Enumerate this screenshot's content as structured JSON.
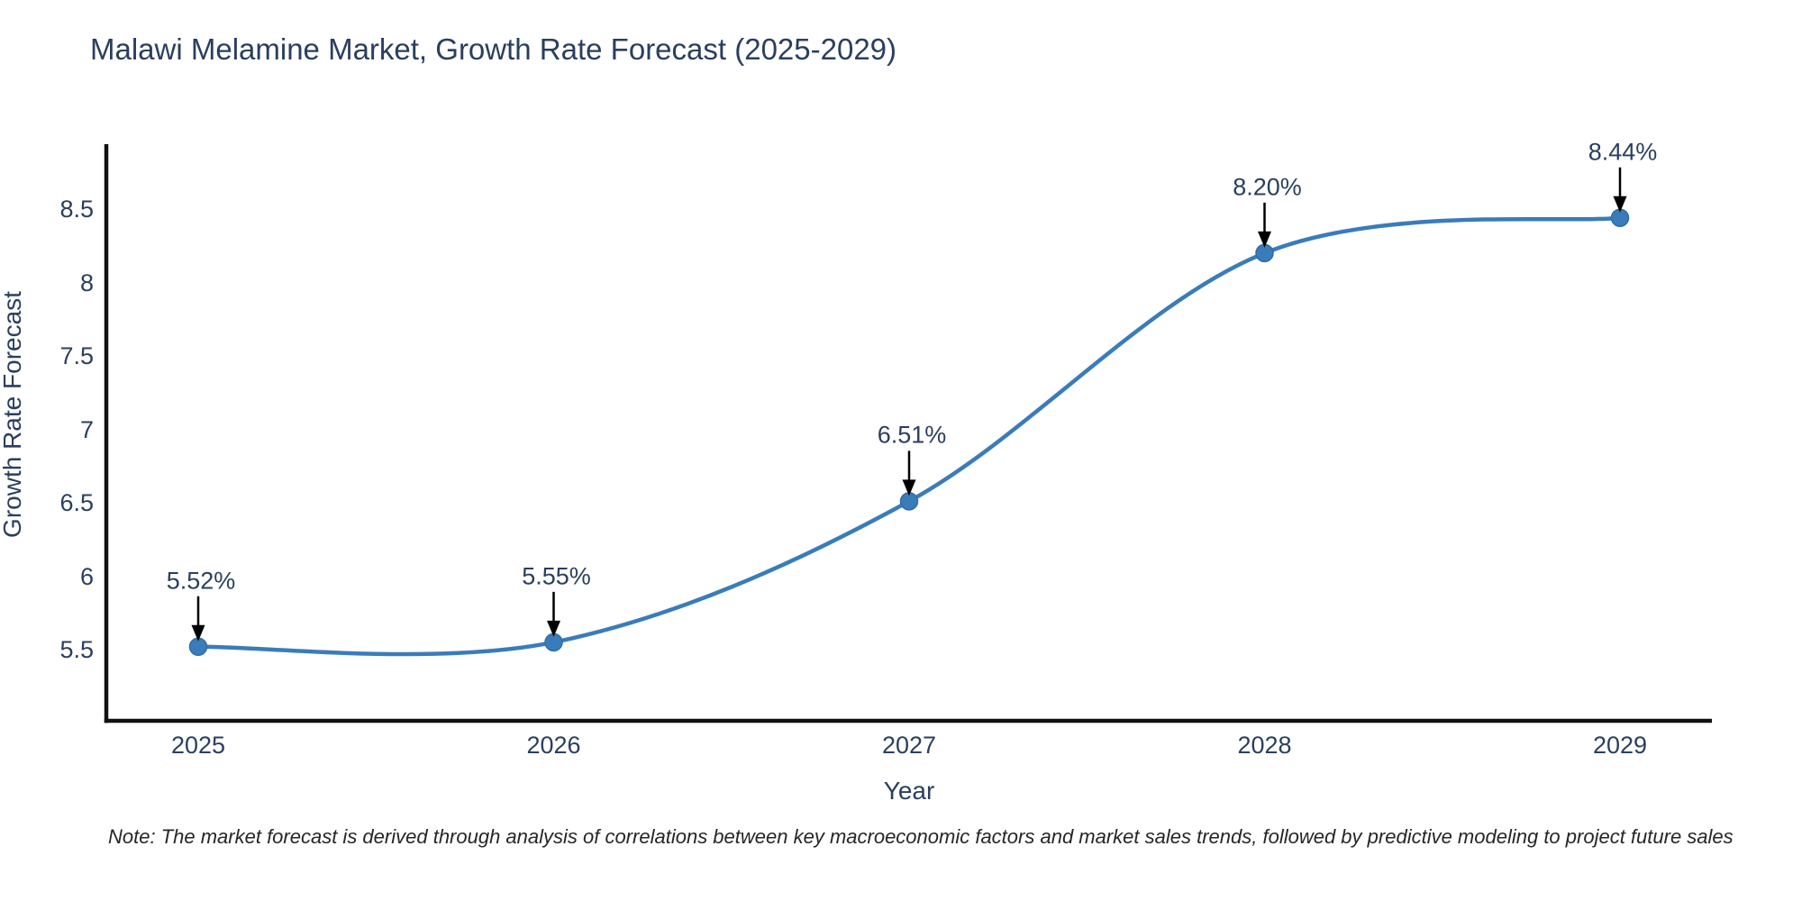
{
  "chart_data": {
    "type": "line",
    "title": "Malawi Melamine Market, Growth Rate Forecast (2025-2029)",
    "xlabel": "Year",
    "ylabel": "Growth Rate Forecast",
    "x": [
      2025,
      2026,
      2027,
      2028,
      2029
    ],
    "series": [
      {
        "name": "Growth Rate Forecast",
        "values": [
          5.52,
          5.55,
          6.51,
          8.2,
          8.44
        ]
      }
    ],
    "point_labels": [
      "5.52%",
      "5.55%",
      "6.51%",
      "8.20%",
      "8.44%"
    ],
    "xticks": [
      "2025",
      "2026",
      "2027",
      "2028",
      "2029"
    ],
    "yticks": [
      5.5,
      6,
      6.5,
      7,
      7.5,
      8,
      8.5
    ],
    "ylim": [
      5.0,
      8.95
    ],
    "line_shape": "spline",
    "grid": false,
    "legend": "none",
    "annotation_style": "down-arrow-to-point",
    "colors": {
      "line": "#3a7cba",
      "marker": "#3a7cba",
      "marker_edge": "#2f6da8",
      "arrow": "#000000",
      "axis_line": "#111111",
      "text": "#2a3f5f"
    }
  },
  "note": {
    "text": "Note: The market forecast is derived through analysis of correlations between key macroeconomic factors and market sales trends, followed by predictive modeling to project future sales"
  }
}
